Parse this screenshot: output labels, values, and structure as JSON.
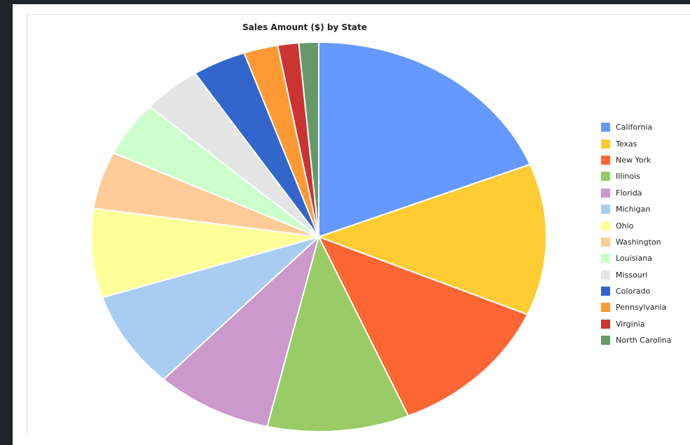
{
  "chart_data": {
    "type": "pie",
    "title": "Sales Amount ($) by State",
    "slices": [
      {
        "label": "California",
        "value": 20.3,
        "color": "#6699FF"
      },
      {
        "label": "Texas",
        "value": 13.5,
        "color": "#FFCC33"
      },
      {
        "label": "New York",
        "value": 12.9,
        "color": "#FF6633"
      },
      {
        "label": "Illinois",
        "value": 10.8,
        "color": "#99CC66"
      },
      {
        "label": "Florida",
        "value": 8.9,
        "color": "#CC99CC"
      },
      {
        "label": "Michigan",
        "value": 8.6,
        "color": "#A9CDF2"
      },
      {
        "label": "Ohio",
        "value": 7.9,
        "color": "#FFFF99"
      },
      {
        "label": "Washington",
        "value": 5.1,
        "color": "#FFCC99"
      },
      {
        "label": "Louisiana",
        "value": 4.9,
        "color": "#CCFFCC"
      },
      {
        "label": "Missouri",
        "value": 4.5,
        "color": "#E5E5E5"
      },
      {
        "label": "Colorado",
        "value": 4.1,
        "color": "#3366CC"
      },
      {
        "label": "Pennsylvania",
        "value": 2.6,
        "color": "#FF9933"
      },
      {
        "label": "Virginia",
        "value": 1.6,
        "color": "#CC3333"
      },
      {
        "label": "North Carolina",
        "value": 1.5,
        "color": "#669966"
      }
    ],
    "legend_position": "right"
  }
}
